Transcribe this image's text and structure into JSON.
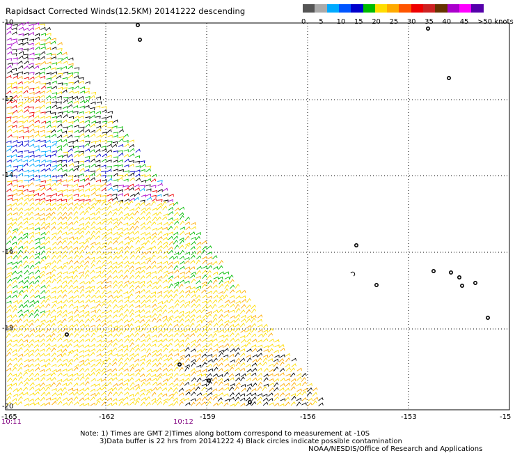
{
  "title": "Rapidsact Corrected Winds(12.5KM) 20141222 descending",
  "color_scale": {
    "colors": [
      "#555555",
      "#aaaaaa",
      "#00aaff",
      "#0055ff",
      "#0000cc",
      "#00bb00",
      "#ffdd00",
      "#ffaa00",
      "#ff5500",
      "#ee0000",
      "#cc2222",
      "#663300",
      "#aa00cc",
      "#ff00ff",
      "#5500aa"
    ],
    "labels": [
      "0",
      "5",
      "10",
      "15",
      "20",
      "25",
      "30",
      "35",
      "40",
      "45",
      ">50 knots"
    ]
  },
  "x_axis": {
    "ticks": [
      "-165",
      "-162",
      "-159",
      "-156",
      "-153",
      "-15"
    ]
  },
  "y_axis": {
    "ticks": [
      "-10",
      "-12",
      "-14",
      "-16",
      "-18",
      "-20"
    ]
  },
  "times": [
    {
      "label": "10:11"
    },
    {
      "label": "10:12"
    }
  ],
  "notes": {
    "line1": "Note: 1) Times are GMT 2)Times along bottom correspond to measurement at -10S",
    "line2": "3)Data buffer is 22 hrs from 20141222 4) Black circles indicate possible contamination",
    "line3": "NOAA/NESDIS/Office of Research and Applications"
  },
  "legend_colors": {
    "black": "#000000",
    "purple": "#aa00cc",
    "blue": "#0000cc",
    "cyan": "#00aaff",
    "green": "#00bb00",
    "yellow": "#ffdd00",
    "orange": "#ffaa00",
    "red": "#ee0000"
  }
}
